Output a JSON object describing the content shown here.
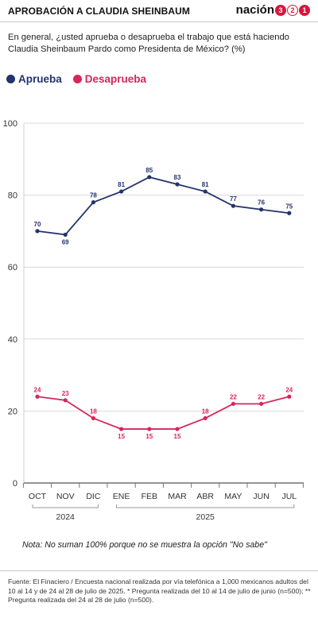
{
  "header": {
    "title": "APROBACIÓN A CLAUDIA SHEINBAUM",
    "brand_text": "nación",
    "brand_digits": [
      "3",
      "2",
      "1"
    ]
  },
  "subtitle": "En general, ¿usted aprueba o desaprueba el trabajo que está haciendo Claudia Sheinbaum Pardo como Presidenta de México?  (%)",
  "note": "Nota: No suman 100% porque no se muestra la opción \"No sabe\"",
  "source": "Fuente:  El Finaciero / Encuesta nacional realizada por vía telefónica a 1,000 mexicanos adultos del 10 al 14 y de 24 al 28 de julio de 2025. * Pregunta realizada del 10 al 14 de julio de junio (n=500); ** Pregunta realizada del 24 al 28 de julio (n=500).",
  "colors": {
    "aprueba": "#23336b",
    "desaprueba": "#d7265a",
    "grid": "#d9d9d9",
    "brand": "#d7173c"
  },
  "chart_data": {
    "type": "line",
    "title": "APROBACIÓN A CLAUDIA SHEINBAUM",
    "categories": [
      "OCT",
      "NOV",
      "DIC",
      "ENE",
      "FEB",
      "MAR",
      "ABR",
      "MAY",
      "JUN",
      "JUL"
    ],
    "year_groups": [
      {
        "label": "2024",
        "from": 0,
        "to": 2
      },
      {
        "label": "2025",
        "from": 3,
        "to": 9
      }
    ],
    "series": [
      {
        "name": "Aprueba",
        "color": "#23336b",
        "values": [
          70,
          69,
          78,
          81,
          85,
          83,
          81,
          77,
          76,
          75
        ]
      },
      {
        "name": "Desaprueba",
        "color": "#d7265a",
        "values": [
          24,
          23,
          18,
          15,
          15,
          15,
          18,
          22,
          22,
          24
        ]
      }
    ],
    "yticks": [
      0,
      20,
      40,
      60,
      80,
      100
    ],
    "ylim": [
      0,
      100
    ],
    "grid": true,
    "legend": "top-left"
  }
}
